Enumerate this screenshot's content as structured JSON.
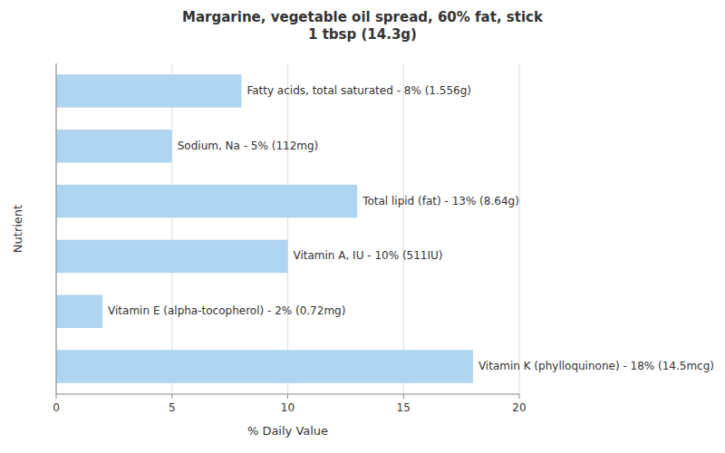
{
  "chart_data": {
    "type": "bar",
    "orientation": "horizontal",
    "title": "Margarine, vegetable oil spread, 60% fat, stick\n1 tbsp (14.3g)",
    "x_label": "% Daily Value",
    "y_label": "Nutrient",
    "categories": [
      "Fatty acids, total saturated - 8% (1.556g)",
      "Sodium, Na - 5% (112mg)",
      "Total lipid (fat) - 13% (8.64g)",
      "Vitamin A, IU - 10% (511IU)",
      "Vitamin E (alpha-tocopherol) - 2% (0.72mg)",
      "Vitamin K (phylloquinone) - 18% (14.5mcg)"
    ],
    "values": [
      8,
      5,
      13,
      10,
      2,
      18
    ],
    "color": "#aed4f0",
    "xlim": [
      0,
      20
    ],
    "xticks": [
      0,
      5,
      10,
      15,
      20
    ],
    "grid": true,
    "tick_labels": "x"
  }
}
